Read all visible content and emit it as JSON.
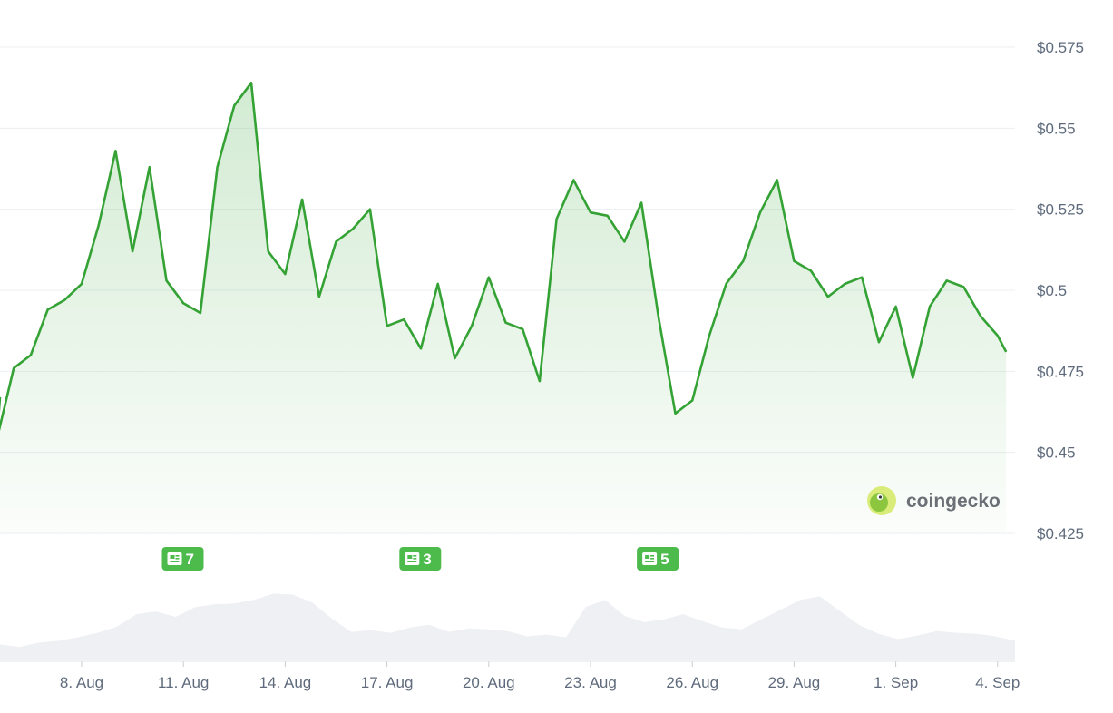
{
  "chart_data": {
    "type": "line",
    "x_label_ticks": [
      "8. Aug",
      "11. Aug",
      "14. Aug",
      "17. Aug",
      "20. Aug",
      "23. Aug",
      "26. Aug",
      "29. Aug",
      "1. Sep",
      "4. Sep"
    ],
    "y_ticks": [
      "$0.575",
      "$0.55",
      "$0.525",
      "$0.5",
      "$0.475",
      "$0.45",
      "$0.425"
    ],
    "y_tick_values": [
      0.575,
      0.55,
      0.525,
      0.5,
      0.475,
      0.45,
      0.425
    ],
    "ylim": [
      0.425,
      0.575
    ],
    "x_range": [
      "2024-08-05",
      "2024-09-04"
    ],
    "series": [
      {
        "color": "#34a234",
        "x": [
          "2024-08-05",
          "2024-08-05T12",
          "2024-08-06",
          "2024-08-06T12",
          "2024-08-07",
          "2024-08-07T12",
          "2024-08-08",
          "2024-08-08T12",
          "2024-08-09",
          "2024-08-09T12",
          "2024-08-10",
          "2024-08-10T12",
          "2024-08-11",
          "2024-08-11T12",
          "2024-08-12",
          "2024-08-12T12",
          "2024-08-13",
          "2024-08-13T12",
          "2024-08-14",
          "2024-08-14T12",
          "2024-08-15",
          "2024-08-15T12",
          "2024-08-16",
          "2024-08-16T12",
          "2024-08-17",
          "2024-08-17T12",
          "2024-08-18",
          "2024-08-18T12",
          "2024-08-19",
          "2024-08-19T12",
          "2024-08-20",
          "2024-08-20T12",
          "2024-08-21",
          "2024-08-21T12",
          "2024-08-22",
          "2024-08-22T12",
          "2024-08-23",
          "2024-08-23T12",
          "2024-08-24",
          "2024-08-24T12",
          "2024-08-25",
          "2024-08-25T12",
          "2024-08-26",
          "2024-08-26T12",
          "2024-08-27",
          "2024-08-27T12",
          "2024-08-28",
          "2024-08-28T12",
          "2024-08-29",
          "2024-08-29T12",
          "2024-08-30",
          "2024-08-30T12",
          "2024-08-31",
          "2024-08-31T12",
          "2024-09-01",
          "2024-09-01T12",
          "2024-09-02",
          "2024-09-02T12",
          "2024-09-03",
          "2024-09-03T12",
          "2024-09-04",
          "2024-09-04T06"
        ],
        "values": [
          0.467,
          0.454,
          0.476,
          0.48,
          0.494,
          0.497,
          0.502,
          0.52,
          0.543,
          0.512,
          0.538,
          0.503,
          0.496,
          0.493,
          0.538,
          0.557,
          0.564,
          0.512,
          0.505,
          0.528,
          0.498,
          0.515,
          0.519,
          0.525,
          0.489,
          0.491,
          0.482,
          0.502,
          0.479,
          0.489,
          0.504,
          0.49,
          0.488,
          0.472,
          0.522,
          0.534,
          0.524,
          0.523,
          0.515,
          0.527,
          0.492,
          0.462,
          0.466,
          0.486,
          0.502,
          0.509,
          0.524,
          0.534,
          0.509,
          0.506,
          0.498,
          0.502,
          0.504,
          0.484,
          0.495,
          0.473,
          0.495,
          0.503,
          0.501,
          0.492,
          0.486,
          0.481
        ]
      }
    ],
    "volume": [
      0.18,
      0.15,
      0.2,
      0.22,
      0.26,
      0.31,
      0.38,
      0.52,
      0.55,
      0.49,
      0.6,
      0.63,
      0.64,
      0.68,
      0.75,
      0.74,
      0.65,
      0.47,
      0.32,
      0.34,
      0.31,
      0.37,
      0.4,
      0.32,
      0.36,
      0.35,
      0.33,
      0.27,
      0.29,
      0.26,
      0.6,
      0.68,
      0.5,
      0.43,
      0.46,
      0.52,
      0.44,
      0.37,
      0.35,
      0.46,
      0.57,
      0.68,
      0.72,
      0.56,
      0.4,
      0.3,
      0.24,
      0.28,
      0.33,
      0.31,
      0.3,
      0.27,
      0.22
    ],
    "news_markers": [
      {
        "date": "2024-08-10T12",
        "count": "7"
      },
      {
        "date": "2024-08-17T12",
        "count": "3"
      },
      {
        "date": "2024-08-24T12",
        "count": "5"
      }
    ],
    "grid": true,
    "colors": {
      "line": "#34a234",
      "fill": "#34a234",
      "volume": "#eef0f3",
      "badge": "#4cbb4c",
      "grid": "#eceff3"
    }
  },
  "brand": {
    "name": "coingecko",
    "icon": "gecko-logo-icon"
  }
}
